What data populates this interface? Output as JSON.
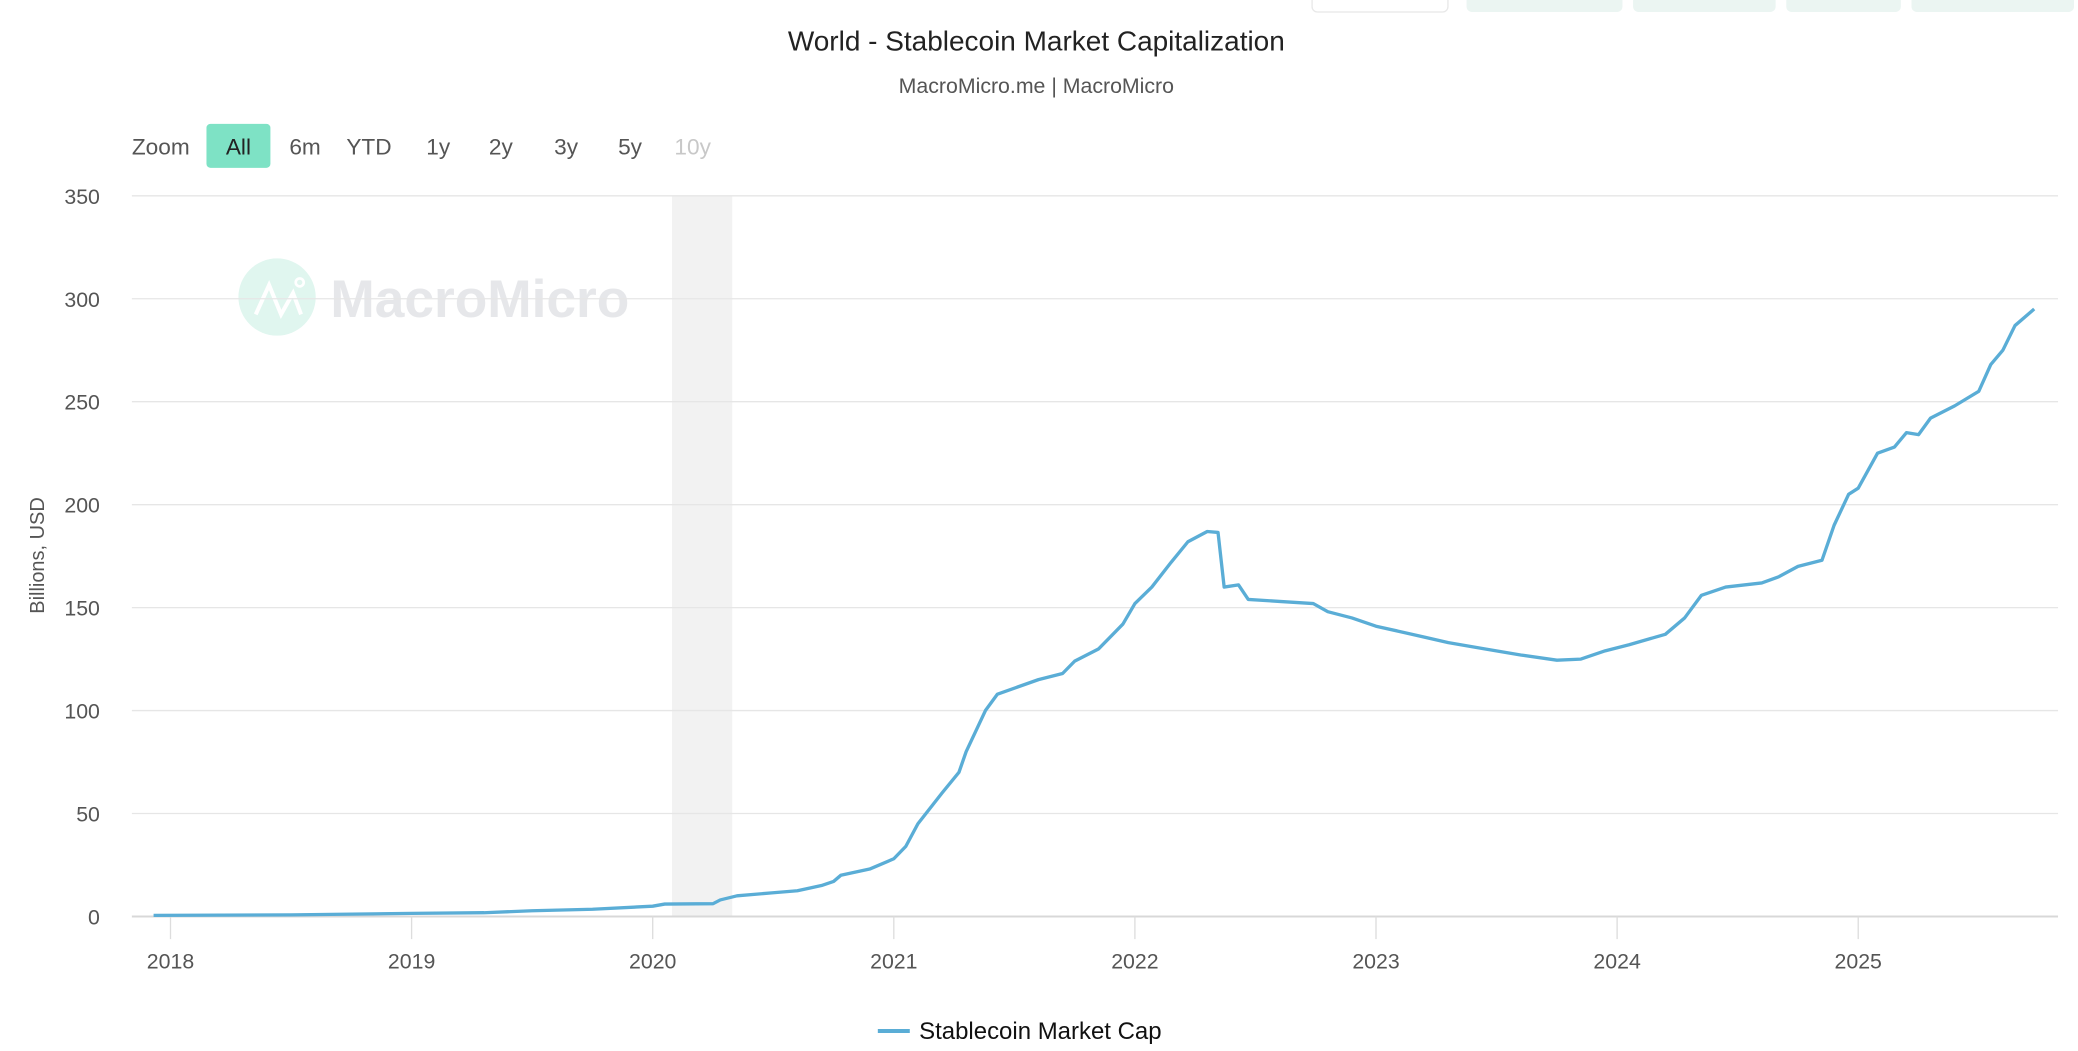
{
  "chart_data": {
    "type": "line",
    "title": "World - Stablecoin Market Capitalization",
    "subtitle": "MacroMicro.me | MacroMicro",
    "ylabel": "Billions, USD",
    "xlabel": "",
    "ylim": [
      0,
      350
    ],
    "xlim": [
      2017.85,
      2025.85
    ],
    "y_ticks": [
      0,
      50,
      100,
      150,
      200,
      250,
      300,
      350
    ],
    "x_ticks": [
      2018,
      2019,
      2020,
      2021,
      2022,
      2023,
      2024,
      2025
    ],
    "x_tick_labels": [
      "2018",
      "2019",
      "2020",
      "2021",
      "2022",
      "2023",
      "2024",
      "2025"
    ],
    "grid": true,
    "legend_position": "bottom-center",
    "shaded_regions": [
      [
        2020.08,
        2020.33
      ]
    ],
    "series": [
      {
        "name": "Stablecoin Market Cap",
        "color": "#5aadd6",
        "x": [
          2017.93,
          2018.5,
          2019.0,
          2019.3,
          2019.5,
          2019.75,
          2020.0,
          2020.05,
          2020.25,
          2020.28,
          2020.35,
          2020.5,
          2020.6,
          2020.7,
          2020.75,
          2020.78,
          2020.9,
          2021.0,
          2021.05,
          2021.1,
          2021.2,
          2021.27,
          2021.3,
          2021.38,
          2021.43,
          2021.6,
          2021.7,
          2021.75,
          2021.85,
          2021.95,
          2022.0,
          2022.07,
          2022.15,
          2022.22,
          2022.3,
          2022.345,
          2022.37,
          2022.43,
          2022.47,
          2022.6,
          2022.74,
          2022.8,
          2022.9,
          2023.0,
          2023.15,
          2023.3,
          2023.45,
          2023.6,
          2023.75,
          2023.85,
          2023.95,
          2024.05,
          2024.2,
          2024.28,
          2024.35,
          2024.45,
          2024.6,
          2024.67,
          2024.75,
          2024.85,
          2024.9,
          2024.96,
          2025.0,
          2025.08,
          2025.15,
          2025.2,
          2025.25,
          2025.3,
          2025.4,
          2025.5,
          2025.55,
          2025.6,
          2025.65,
          2025.73
        ],
        "values": [
          0.5,
          0.8,
          1.5,
          1.8,
          2.8,
          3.5,
          5,
          6,
          6.2,
          8,
          10,
          11.5,
          12.5,
          15,
          17,
          20,
          23,
          28,
          34,
          45,
          60,
          70,
          80,
          100,
          108,
          115,
          118,
          124,
          130,
          142,
          152,
          160,
          172,
          182,
          187,
          186.5,
          160,
          161,
          154,
          153,
          152,
          148,
          145,
          141,
          137,
          133,
          130,
          127,
          124.5,
          125,
          129,
          132,
          137,
          145,
          156,
          160,
          162,
          165,
          170,
          173,
          190,
          205,
          208,
          225,
          228,
          235,
          234,
          242,
          248,
          255,
          268,
          275,
          287,
          295
        ]
      }
    ]
  },
  "zoom": {
    "label": "Zoom",
    "buttons": [
      "All",
      "6m",
      "YTD",
      "1y",
      "2y",
      "3y",
      "5y",
      "10y"
    ],
    "selected": "All",
    "disabled": [
      "10y"
    ]
  },
  "watermark": "MacroMicro",
  "colors": {
    "accent": "#7ee2c5",
    "line": "#5aadd6",
    "grid": "#e6e6e6",
    "shade": "#f2f2f2"
  }
}
